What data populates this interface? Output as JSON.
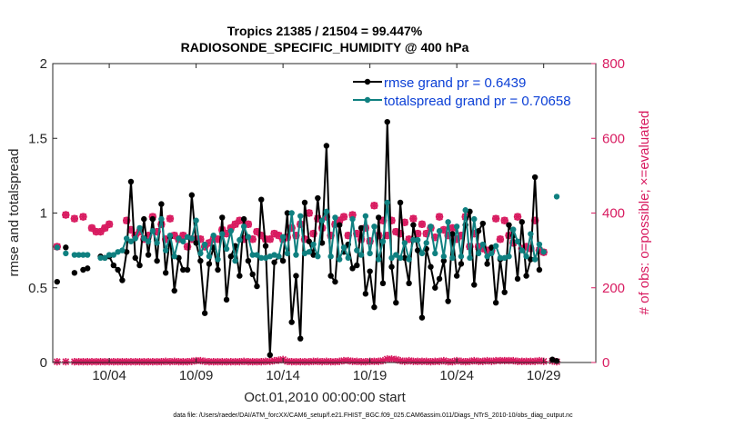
{
  "chart_data": {
    "type": "line",
    "title": "Tropics 21385 / 21504 = 99.447%",
    "subtitle": "RADIOSONDE_SPECIFIC_HUMIDITY @ 400 hPa",
    "xlabel": "Oct.01,2010 00:00:00 start",
    "ylabel": "rmse and totalspread",
    "ylabel_right": "# of obs: o=possible; ×=evaluated",
    "xlim": [
      0.75,
      32.0
    ],
    "ylim": [
      0,
      2
    ],
    "ylim_right": [
      0,
      800
    ],
    "x_ticks": [
      {
        "value": 4,
        "label": "10/04"
      },
      {
        "value": 9,
        "label": "10/09"
      },
      {
        "value": 14,
        "label": "10/14"
      },
      {
        "value": 19,
        "label": "10/19"
      },
      {
        "value": 24,
        "label": "10/24"
      },
      {
        "value": 29,
        "label": "10/29"
      }
    ],
    "y_ticks": [
      {
        "value": 0,
        "label": "0"
      },
      {
        "value": 0.5,
        "label": "0.5"
      },
      {
        "value": 1,
        "label": "1"
      },
      {
        "value": 1.5,
        "label": "1.5"
      },
      {
        "value": 2,
        "label": "2"
      }
    ],
    "y_ticks_right": [
      {
        "value": 0,
        "label": "0"
      },
      {
        "value": 200,
        "label": "200"
      },
      {
        "value": 400,
        "label": "400"
      },
      {
        "value": 600,
        "label": "600"
      },
      {
        "value": 800,
        "label": "800"
      }
    ],
    "x_start": 1.0,
    "x_step": 0.25,
    "series": [
      {
        "name": "rmse grand pr = 0.6439",
        "color": "#000000",
        "marker": "filled-circle",
        "axis": "left",
        "values": [
          0.54,
          null,
          0.77,
          null,
          0.6,
          null,
          0.62,
          0.63,
          null,
          null,
          0.71,
          0.7,
          0.71,
          0.65,
          0.62,
          0.55,
          0.74,
          1.21,
          0.7,
          0.65,
          0.96,
          0.72,
          0.96,
          0.68,
          1.06,
          0.6,
          0.84,
          0.48,
          0.7,
          0.62,
          0.62,
          1.12,
          0.8,
          0.68,
          0.33,
          0.66,
          0.77,
          0.62,
          0.97,
          0.42,
          0.71,
          0.78,
          0.58,
          0.96,
          0.68,
          0.59,
          0.51,
          1.09,
          0.78,
          0.05,
          0.67,
          0.71,
          0.68,
          1.0,
          0.27,
          0.58,
          0.16,
          1.07,
          0.81,
          0.72,
          1.1,
          0.8,
          1.45,
          0.58,
          0.54,
          0.92,
          0.74,
          0.79,
          0.63,
          0.65,
          0.9,
          0.46,
          0.61,
          0.37,
          0.97,
          0.53,
          1.61,
          0.64,
          0.4,
          1.07,
          0.7,
          0.53,
          0.92,
          0.75,
          0.3,
          0.76,
          0.64,
          0.5,
          0.56,
          0.68,
          0.41,
          0.86,
          0.58,
          0.66,
          0.92,
          1.01,
          0.52,
          0.88,
          0.93,
          0.66,
          0.77,
          0.4,
          0.69,
          0.47,
          0.92,
          0.85,
          0.56,
          0.94,
          0.58,
          0.69,
          1.24,
          0.62,
          null,
          null,
          0.02,
          0.01
        ]
      },
      {
        "name": "totalspread grand pr = 0.70658",
        "color": "#0f8080",
        "marker": "filled-circle",
        "axis": "left",
        "values": [
          0.77,
          null,
          0.73,
          null,
          0.72,
          0.72,
          0.72,
          0.72,
          null,
          null,
          0.7,
          0.7,
          0.72,
          0.72,
          0.74,
          0.75,
          0.83,
          0.81,
          0.83,
          0.9,
          0.83,
          0.81,
          0.88,
          0.8,
          0.96,
          0.75,
          0.85,
          0.71,
          0.83,
          0.81,
          0.84,
          0.83,
          0.95,
          0.73,
          0.79,
          0.71,
          0.85,
          0.69,
          0.86,
          0.76,
          0.88,
          0.68,
          0.82,
          0.91,
          0.84,
          0.72,
          0.72,
          0.7,
          0.7,
          0.71,
          0.72,
          0.71,
          0.84,
          0.73,
          1.0,
          0.72,
          0.98,
          0.73,
          0.74,
          0.79,
          0.71,
          0.95,
          1.01,
          0.71,
          0.97,
          0.69,
          0.77,
          0.7,
          0.96,
          0.75,
          0.72,
          0.98,
          0.73,
          0.91,
          0.69,
          0.81,
          1.07,
          0.7,
          0.72,
          0.7,
          0.8,
          0.69,
          0.82,
          0.82,
          0.73,
          0.8,
          0.91,
          0.73,
          0.88,
          0.71,
          0.94,
          0.7,
          0.91,
          0.71,
          1.02,
          0.7,
          0.96,
          0.73,
          0.79,
          0.71,
          0.73,
          0.78,
          0.7,
          0.7,
          0.71,
          0.89,
          0.81,
          0.75,
          0.71,
          0.86,
          0.69,
          0.79,
          0.74,
          null,
          null,
          1.11
        ]
      },
      {
        "name": "possible obs",
        "color": "#d81b60",
        "marker": "open-circle",
        "axis": "right",
        "values": [
          310,
          null,
          395,
          null,
          385,
          null,
          390,
          null,
          360,
          350,
          350,
          360,
          370,
          null,
          null,
          null,
          380,
          355,
          340,
          350,
          330,
          340,
          390,
          350,
          370,
          330,
          385,
          340,
          330,
          340,
          310,
          330,
          330,
          330,
          310,
          320,
          330,
          330,
          355,
          345,
          360,
          370,
          380,
          330,
          370,
          330,
          350,
          340,
          330,
          330,
          345,
          340,
          330,
          335,
          360,
          340,
          370,
          330,
          400,
          345,
          385,
          360,
          390,
          340,
          370,
          380,
          390,
          340,
          395,
          345,
          330,
          360,
          325,
          420,
          340,
          380,
          340,
          380,
          350,
          345,
          375,
          330,
          385,
          345,
          370,
          345,
          360,
          335,
          390,
          355,
          340,
          360,
          330,
          340,
          390,
          310,
          345,
          310,
          305,
          300,
          300,
          385,
          330,
          380,
          340,
          320,
          390,
          305,
          310,
          305,
          380,
          300,
          295,
          null,
          null,
          null
        ]
      },
      {
        "name": "evaluated obs",
        "color": "#d81b60",
        "marker": "cross",
        "axis": "right",
        "values": [
          310,
          null,
          395,
          null,
          385,
          null,
          390,
          null,
          360,
          350,
          350,
          360,
          370,
          null,
          null,
          null,
          380,
          355,
          340,
          350,
          330,
          340,
          390,
          350,
          370,
          330,
          385,
          340,
          330,
          340,
          310,
          330,
          330,
          330,
          310,
          320,
          330,
          330,
          355,
          345,
          360,
          370,
          380,
          330,
          370,
          330,
          350,
          340,
          330,
          330,
          345,
          340,
          330,
          335,
          360,
          340,
          370,
          330,
          400,
          345,
          385,
          360,
          390,
          340,
          370,
          380,
          390,
          340,
          395,
          345,
          330,
          360,
          325,
          420,
          340,
          380,
          340,
          380,
          350,
          345,
          375,
          330,
          385,
          345,
          370,
          345,
          360,
          335,
          390,
          355,
          340,
          360,
          330,
          340,
          390,
          310,
          345,
          310,
          305,
          300,
          300,
          385,
          330,
          380,
          340,
          320,
          390,
          305,
          310,
          305,
          380,
          300,
          295,
          null,
          null,
          null
        ]
      },
      {
        "name": "possible-minus-evaluated (near zero)",
        "color": "#d81b60",
        "marker": "cross-line",
        "axis": "right",
        "values": [
          2,
          null,
          2,
          null,
          2,
          2,
          2,
          2,
          2,
          2,
          2,
          2,
          2,
          2,
          2,
          2,
          2,
          2,
          2,
          2,
          2,
          2,
          2,
          2,
          2,
          3,
          2,
          3,
          2,
          2,
          2,
          3,
          5,
          5,
          3,
          2,
          2,
          2,
          2,
          2,
          2,
          2,
          2,
          3,
          2,
          2,
          2,
          2,
          3,
          3,
          5,
          6,
          8,
          3,
          2,
          2,
          2,
          2,
          2,
          3,
          3,
          2,
          3,
          2,
          2,
          3,
          5,
          5,
          3,
          3,
          2,
          2,
          3,
          3,
          3,
          5,
          9,
          9,
          8,
          5,
          3,
          5,
          3,
          3,
          3,
          3,
          2,
          3,
          3,
          5,
          2,
          2,
          5,
          3,
          2,
          3,
          5,
          3,
          3,
          5,
          3,
          5,
          5,
          5,
          5,
          5,
          3,
          3,
          3,
          3,
          3,
          5,
          3,
          null,
          4,
          2
        ]
      }
    ],
    "legend": {
      "position": "top-right",
      "entries": [
        "rmse grand pr = 0.6439",
        "totalspread grand pr = 0.70658"
      ]
    }
  },
  "footer": {
    "data_file": "data file: /Users/raeder/DAI/ATM_forcXX/CAM6_setup/f.e21.FHIST_BGC.f09_025.CAM6assim.011/Diags_NTrS_2010-10/obs_diag_output.nc"
  },
  "colors": {
    "rmse": "#000000",
    "spread": "#0f8080",
    "obs": "#d81b60",
    "legend_text": "#0b3fd6"
  }
}
